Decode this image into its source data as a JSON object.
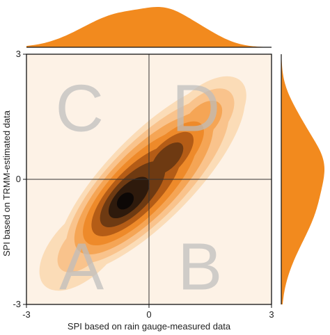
{
  "chart_data": {
    "type": "density-contour",
    "xlabel": "SPI based on rain gauge-measured data",
    "ylabel": "SPI based on TRMM-estimated data",
    "xlim": [
      -3,
      3
    ],
    "ylim": [
      -3,
      3
    ],
    "xticks": [
      "-3",
      "0",
      "3"
    ],
    "yticks": [
      "-3",
      "0",
      "3"
    ],
    "reference_lines": {
      "x": 0,
      "y": 0
    },
    "quadrant_labels": [
      {
        "label": "C",
        "quadrant": "top-left"
      },
      {
        "label": "D",
        "quadrant": "top-right"
      },
      {
        "label": "A",
        "quadrant": "bottom-left"
      },
      {
        "label": "B",
        "quadrant": "bottom-right"
      }
    ],
    "density_peaks": [
      {
        "x": -0.6,
        "y": -0.5,
        "weight": 1.0
      },
      {
        "x": 0.45,
        "y": 0.5,
        "weight": 0.85
      },
      {
        "x": 1.3,
        "y": 1.4,
        "weight": 0.45
      },
      {
        "x": -1.6,
        "y": -1.6,
        "weight": 0.3
      }
    ],
    "marginals": {
      "top": "x-distribution",
      "right": "y-distribution"
    },
    "colors": {
      "plot_background": "#fdf2e6",
      "marginal_fill": "#f28a1e",
      "contour_levels": [
        "#fbdcb7",
        "#f9c38c",
        "#f5a555",
        "#ee8a2a",
        "#b45c16",
        "#6e3a12",
        "#2e1a0c",
        "#0d0806"
      ]
    }
  }
}
